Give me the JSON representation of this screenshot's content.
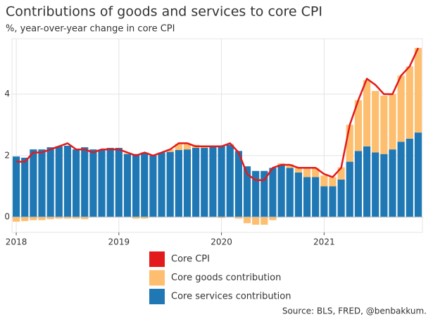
{
  "chart_data": {
    "type": "bar",
    "title": "Contributions of goods and services to core CPI",
    "subtitle": "%, year-over-year change in core CPI",
    "source": "Source: BLS, FRED, @benbakkum.",
    "categories": [
      "2018",
      null,
      null,
      null,
      null,
      null,
      null,
      null,
      null,
      null,
      null,
      null,
      "2019",
      null,
      null,
      null,
      null,
      null,
      null,
      null,
      null,
      null,
      null,
      null,
      "2020",
      null,
      null,
      null,
      null,
      null,
      null,
      null,
      null,
      null,
      null,
      null,
      "2021",
      null,
      null,
      null,
      null,
      null,
      null,
      null,
      null,
      null,
      null,
      null
    ],
    "series": [
      {
        "name": "Core CPI",
        "type": "line",
        "color": "#e31a1c",
        "values": [
          1.8,
          1.8,
          2.1,
          2.1,
          2.2,
          2.3,
          2.4,
          2.2,
          2.2,
          2.1,
          2.2,
          2.2,
          2.2,
          2.1,
          2.0,
          2.1,
          2.0,
          2.1,
          2.2,
          2.4,
          2.4,
          2.3,
          2.3,
          2.3,
          2.3,
          2.4,
          2.1,
          1.4,
          1.2,
          1.2,
          1.6,
          1.7,
          1.7,
          1.6,
          1.6,
          1.6,
          1.4,
          1.3,
          1.6,
          3.0,
          3.8,
          4.5,
          4.3,
          4.0,
          4.0,
          4.6,
          4.9,
          5.5
        ]
      },
      {
        "name": "Core goods contribution",
        "type": "bar",
        "color": "#fdbf6f",
        "values": [
          -0.15,
          -0.13,
          -0.1,
          -0.1,
          -0.07,
          -0.05,
          -0.05,
          -0.05,
          -0.07,
          0,
          0,
          0,
          0,
          0.03,
          -0.05,
          -0.05,
          0,
          0,
          0.08,
          0.2,
          0.2,
          0.1,
          0.05,
          0.02,
          -0.03,
          0.03,
          -0.05,
          -0.2,
          -0.25,
          -0.25,
          -0.1,
          0.05,
          0.12,
          0.18,
          0.28,
          0.3,
          0.35,
          0.3,
          0.4,
          1.2,
          1.65,
          2.15,
          2.0,
          1.9,
          1.8,
          2.15,
          2.35,
          2.75
        ]
      },
      {
        "name": "Core services contribution",
        "type": "bar",
        "color": "#1f78b4",
        "values": [
          1.97,
          1.93,
          2.2,
          2.2,
          2.27,
          2.3,
          2.32,
          2.2,
          2.27,
          2.2,
          2.2,
          2.25,
          2.25,
          2.05,
          2.05,
          2.1,
          2.0,
          2.1,
          2.12,
          2.18,
          2.2,
          2.25,
          2.25,
          2.28,
          2.33,
          2.35,
          2.15,
          1.65,
          1.5,
          1.5,
          1.6,
          1.7,
          1.6,
          1.45,
          1.3,
          1.3,
          1.0,
          1.0,
          1.22,
          1.8,
          2.15,
          2.3,
          2.1,
          2.05,
          2.2,
          2.45,
          2.55,
          2.75
        ]
      }
    ],
    "ylim": [
      -0.5,
      5.8
    ],
    "yticks": [
      0,
      2,
      4
    ],
    "grid": true,
    "legend": "bottom"
  }
}
